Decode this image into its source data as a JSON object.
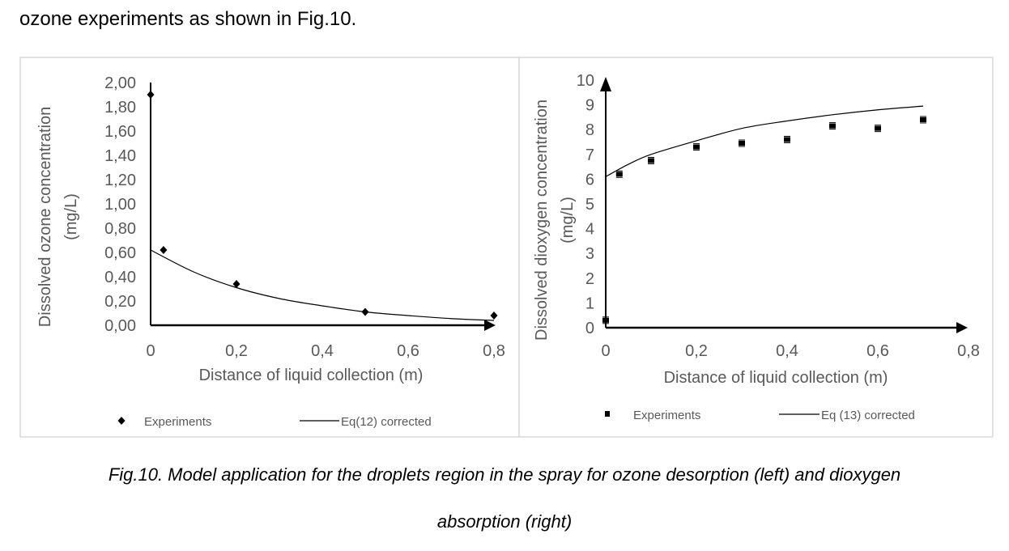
{
  "intro_text": "ozone experiments as shown in Fig.10.",
  "caption_line1": "Fig.10. Model application for the droplets region in the spray for ozone desorption (left) and dioxygen",
  "caption_line2": "absorption (right)",
  "chart_data": [
    {
      "type": "scatter",
      "xlabel": "Distance of liquid collection (m)",
      "ylabel": "Dissolved ozone concentration (mg/L)",
      "xlim": [
        0,
        0.8
      ],
      "ylim": [
        0,
        2.0
      ],
      "xticks": [
        "0",
        "0,2",
        "0,4",
        "0,6",
        "0,8"
      ],
      "yticks": [
        "0,00",
        "0,20",
        "0,40",
        "0,60",
        "0,80",
        "1,00",
        "1,20",
        "1,40",
        "1,60",
        "1,80",
        "2,00"
      ],
      "grid": false,
      "legend_placement": "bottom",
      "series": [
        {
          "name": "Experiments",
          "marker": "diamond",
          "x": [
            0,
            0.03,
            0.2,
            0.5,
            0.8
          ],
          "y": [
            1.9,
            0.62,
            0.34,
            0.11,
            0.08
          ]
        },
        {
          "name": "Eq(12) corrected",
          "marker": "line",
          "x": [
            0,
            0.1,
            0.2,
            0.3,
            0.4,
            0.5,
            0.6,
            0.7,
            0.8
          ],
          "y": [
            0.62,
            0.44,
            0.31,
            0.22,
            0.16,
            0.11,
            0.08,
            0.055,
            0.04
          ]
        }
      ]
    },
    {
      "type": "scatter",
      "xlabel": "Distance of liquid collection (m)",
      "ylabel": "Dissolved dioxygen concentration (mg/L)",
      "xlim": [
        0,
        0.8
      ],
      "ylim": [
        0,
        10
      ],
      "xticks": [
        "0",
        "0,2",
        "0,4",
        "0,6",
        "0,8"
      ],
      "yticks": [
        "0",
        "1",
        "2",
        "3",
        "4",
        "5",
        "6",
        "7",
        "8",
        "9",
        "10"
      ],
      "grid": false,
      "legend_placement": "bottom",
      "series": [
        {
          "name": "Experiments",
          "marker": "square-errorbar",
          "x": [
            0,
            0.03,
            0.1,
            0.2,
            0.3,
            0.4,
            0.5,
            0.6,
            0.7
          ],
          "y": [
            0.3,
            6.2,
            6.75,
            7.3,
            7.45,
            7.6,
            8.15,
            8.05,
            8.4
          ]
        },
        {
          "name": "Eq (13) corrected",
          "marker": "line",
          "x": [
            0,
            0.05,
            0.1,
            0.2,
            0.3,
            0.4,
            0.5,
            0.6,
            0.7
          ],
          "y": [
            6.1,
            6.6,
            7.0,
            7.55,
            8.05,
            8.35,
            8.6,
            8.8,
            8.95
          ]
        }
      ]
    }
  ]
}
